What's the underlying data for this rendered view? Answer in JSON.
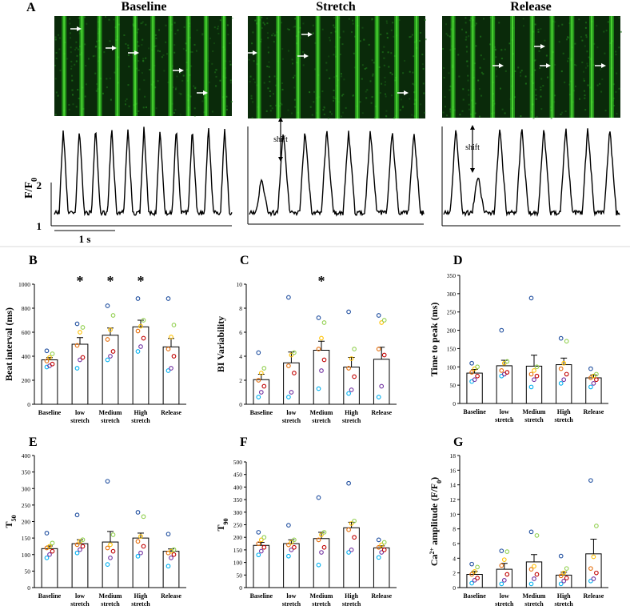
{
  "panel_a": {
    "letter": "A",
    "conditions": [
      "Baseline",
      "Stretch",
      "Release"
    ],
    "trace_ylabel": "F/F",
    "trace_ylabel_sub": "0",
    "trace_yticks": [
      "2",
      "1"
    ],
    "scale_bar_label": "1 s",
    "shift_label": "shift"
  },
  "chart_data": [
    {
      "id": "B",
      "type": "bar",
      "letter": "B",
      "ylabel": "Beat interval (ms)",
      "categories": [
        "Baseline",
        "low stretch",
        "Medium stretch",
        "High stretch",
        "Release"
      ],
      "ylim": [
        0,
        1000
      ],
      "yticks": [
        0,
        200,
        400,
        600,
        800,
        1000
      ],
      "values": [
        370,
        500,
        575,
        645,
        478
      ],
      "errors": [
        18,
        55,
        60,
        55,
        70
      ],
      "significance": [
        "",
        "*",
        "*",
        "*",
        ""
      ],
      "points": [
        [
          310,
          320,
          335,
          360,
          390,
          420,
          445
        ],
        [
          300,
          370,
          390,
          490,
          600,
          640,
          670
        ],
        [
          370,
          400,
          440,
          540,
          620,
          740,
          820
        ],
        [
          440,
          480,
          550,
          610,
          650,
          700,
          880
        ],
        [
          280,
          300,
          400,
          460,
          560,
          660,
          880
        ]
      ]
    },
    {
      "id": "C",
      "type": "bar",
      "letter": "C",
      "ylabel": "BI Variability",
      "categories": [
        "Baseline",
        "low stretch",
        "Medium stretch",
        "High stretch",
        "Release"
      ],
      "ylim": [
        0,
        10
      ],
      "yticks": [
        0,
        2,
        4,
        6,
        8,
        10
      ],
      "values": [
        2.05,
        3.45,
        4.5,
        3.1,
        3.75
      ],
      "errors": [
        0.45,
        0.9,
        0.75,
        0.8,
        1.0
      ],
      "significance": [
        "",
        "",
        "*",
        "",
        ""
      ],
      "points": [
        [
          0.6,
          1.0,
          1.5,
          2.0,
          2.6,
          3.0,
          4.3
        ],
        [
          0.6,
          1.0,
          2.6,
          3.2,
          4.1,
          4.3,
          8.9
        ],
        [
          1.3,
          2.8,
          3.7,
          4.6,
          5.5,
          6.8,
          7.2
        ],
        [
          0.9,
          1.2,
          2.3,
          3.0,
          3.8,
          4.6,
          7.7
        ],
        [
          0.6,
          1.5,
          4.1,
          4.6,
          6.8,
          7.0,
          7.4
        ]
      ]
    },
    {
      "id": "D",
      "type": "bar",
      "letter": "D",
      "ylabel": "Time to peak (ms)",
      "categories": [
        "Baseline",
        "low stretch",
        "Medium stretch",
        "High stretch",
        "Release"
      ],
      "ylim": [
        0,
        350
      ],
      "yticks": [
        0,
        50,
        100,
        150,
        200,
        250,
        300,
        350
      ],
      "values": [
        83,
        103,
        102,
        106,
        70
      ],
      "errors": [
        10,
        15,
        30,
        18,
        8
      ],
      "significance": [
        "",
        "",
        "",
        "",
        ""
      ],
      "points": [
        [
          60,
          65,
          75,
          85,
          95,
          100,
          110
        ],
        [
          75,
          80,
          85,
          90,
          110,
          115,
          200
        ],
        [
          45,
          65,
          75,
          80,
          90,
          100,
          288
        ],
        [
          55,
          65,
          80,
          95,
          110,
          170,
          178
        ],
        [
          45,
          55,
          65,
          70,
          75,
          80,
          95
        ]
      ]
    },
    {
      "id": "E",
      "type": "bar",
      "letter": "E",
      "ylabel": "T",
      "ylabel_sub": "50",
      "categories": [
        "Baseline",
        "low stretch",
        "Medium stretch",
        "High stretch",
        "Release"
      ],
      "ylim": [
        0,
        400
      ],
      "yticks": [
        0,
        50,
        100,
        150,
        200,
        250,
        300,
        350,
        400
      ],
      "values": [
        118,
        133,
        138,
        150,
        110
      ],
      "errors": [
        8,
        12,
        32,
        15,
        7
      ],
      "significance": [
        "",
        "",
        "",
        "",
        ""
      ],
      "points": [
        [
          90,
          100,
          110,
          120,
          125,
          135,
          165
        ],
        [
          105,
          115,
          125,
          130,
          140,
          145,
          220
        ],
        [
          70,
          90,
          110,
          120,
          130,
          160,
          322
        ],
        [
          95,
          105,
          125,
          140,
          155,
          215,
          228
        ],
        [
          65,
          90,
          100,
          105,
          110,
          115,
          162
        ]
      ]
    },
    {
      "id": "F",
      "type": "bar",
      "letter": "F",
      "ylabel": "T",
      "ylabel_sub": "90",
      "categories": [
        "Baseline",
        "low stretch",
        "Medium stretch",
        "High stretch",
        "Release"
      ],
      "ylim": [
        0,
        500
      ],
      "yticks": [
        0,
        50,
        100,
        150,
        200,
        250,
        300,
        350,
        400,
        450,
        500
      ],
      "values": [
        168,
        175,
        195,
        238,
        158
      ],
      "errors": [
        12,
        15,
        25,
        22,
        8
      ],
      "significance": [
        "",
        "",
        "",
        "",
        ""
      ],
      "points": [
        [
          130,
          145,
          160,
          175,
          190,
          200,
          220
        ],
        [
          125,
          150,
          160,
          170,
          180,
          190,
          248
        ],
        [
          90,
          140,
          160,
          190,
          210,
          220,
          358
        ],
        [
          140,
          150,
          200,
          230,
          255,
          265,
          415
        ],
        [
          120,
          140,
          150,
          160,
          170,
          180,
          190
        ]
      ]
    },
    {
      "id": "G",
      "type": "bar",
      "letter": "G",
      "ylabel": "Ca",
      "ylabel_sup": "2+",
      "ylabel_rest": " amplitude (F/F",
      "ylabel_sub": "0",
      "ylabel_end": ")",
      "categories": [
        "Baseline",
        "low stretch",
        "Medium stretch",
        "High stretch",
        "Release"
      ],
      "ylim": [
        0,
        18
      ],
      "yticks": [
        0,
        2,
        4,
        6,
        8,
        10,
        12,
        14,
        16,
        18
      ],
      "values": [
        1.8,
        2.5,
        3.5,
        1.7,
        4.6
      ],
      "errors": [
        0.4,
        0.8,
        1.0,
        0.4,
        2.0
      ],
      "significance": [
        "",
        "",
        "",
        "",
        ""
      ],
      "points": [
        [
          0.6,
          1.0,
          1.3,
          1.8,
          2.2,
          2.8,
          3.2
        ],
        [
          0.5,
          1.0,
          1.8,
          3.0,
          3.8,
          4.9,
          5.0
        ],
        [
          0.5,
          1.2,
          1.8,
          2.5,
          2.9,
          7.1,
          7.6
        ],
        [
          0.5,
          0.9,
          1.3,
          1.6,
          2.0,
          2.6,
          4.3
        ],
        [
          0.9,
          1.2,
          2.0,
          2.6,
          4.2,
          8.4,
          14.6
        ]
      ]
    }
  ],
  "colors": {
    "point_palette": [
      "#00b0f0",
      "#7030a0",
      "#c00000",
      "#e46c0a",
      "#ffc000",
      "#92d050",
      "#1f4e9f"
    ],
    "bar_fill": "#ffffff",
    "bar_stroke": "#000000",
    "trace": "#000000",
    "separator": "#d9d9d9",
    "confocal_background": "#0a2a0a",
    "confocal_signal": "#33dd22",
    "arrow": "#ffffff"
  }
}
